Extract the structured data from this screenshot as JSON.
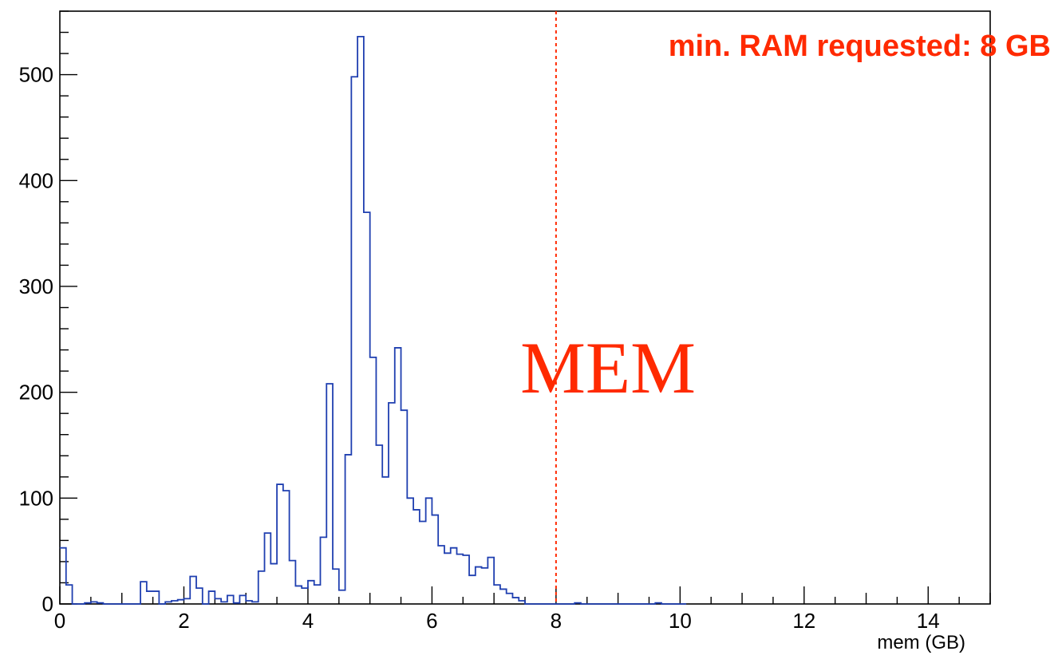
{
  "chart_data": {
    "type": "histogram",
    "xlabel": "mem (GB)",
    "ylabel": "",
    "xlim": [
      0,
      15
    ],
    "ylim": [
      0,
      560
    ],
    "x_ticks": [
      0,
      2,
      4,
      6,
      8,
      10,
      12,
      14
    ],
    "y_ticks": [
      0,
      100,
      200,
      300,
      400,
      500
    ],
    "bin_width": 0.1,
    "bin_start": 0.0,
    "values": [
      53,
      18,
      0,
      0,
      1,
      2,
      1,
      0,
      0,
      0,
      0,
      0,
      0,
      21,
      12,
      12,
      0,
      2,
      3,
      4,
      5,
      26,
      15,
      0,
      12,
      5,
      2,
      8,
      1,
      8,
      3,
      2,
      31,
      67,
      38,
      113,
      107,
      41,
      17,
      15,
      22,
      18,
      63,
      208,
      33,
      13,
      141,
      498,
      536,
      370,
      233,
      150,
      120,
      190,
      242,
      183,
      100,
      89,
      78,
      100,
      84,
      55,
      48,
      53,
      47,
      46,
      27,
      35,
      34,
      44,
      18,
      14,
      10,
      6,
      3,
      0,
      0,
      0,
      0,
      0,
      0,
      0,
      0,
      1,
      0,
      0,
      0,
      0,
      0,
      0,
      0,
      0,
      0,
      0,
      0,
      0,
      1,
      0,
      0,
      0,
      0
    ],
    "series": [
      {
        "color": "#1f3fb0"
      }
    ],
    "reference_line": {
      "x": 8,
      "style": "dashed",
      "color": "#ff2a00"
    },
    "annotations": [
      {
        "text": "min. RAM requested: 8 GB",
        "color": "#ff2a00"
      },
      {
        "text": "MEM",
        "color": "#ff2a00"
      }
    ],
    "grid": false,
    "legend": "none"
  }
}
